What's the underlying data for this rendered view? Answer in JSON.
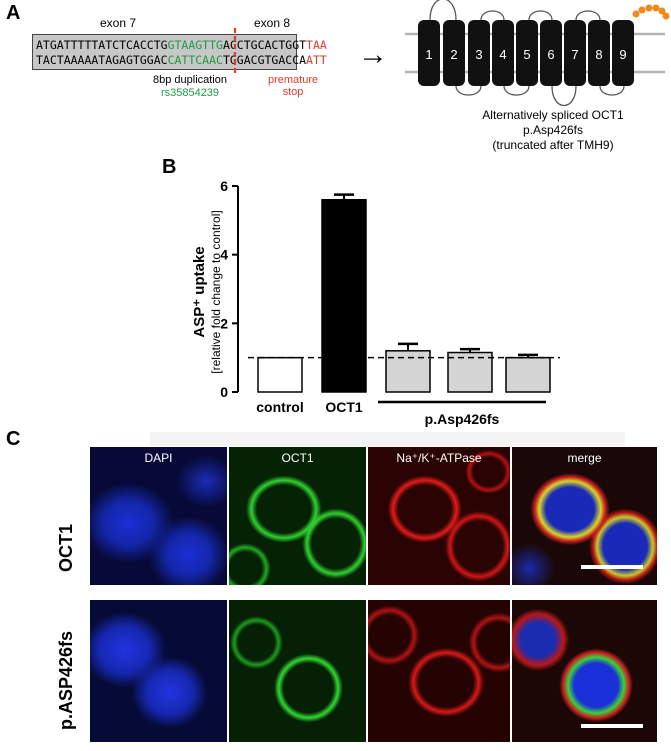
{
  "panel_a": {
    "label": "A",
    "exon7": "exon 7",
    "exon8": "exon 8",
    "seq_top": {
      "plain": "ATGATTTTTATCTCACCTG",
      "green": "GTAAGTTG",
      "black2": "ACCTGCACTGGT",
      "red": "TAA"
    },
    "seq_bottom": {
      "plain": "TACTAAAAATAGAGTGGAC",
      "green": "CATTCAAC",
      "black2": "TGGACGTGACCA",
      "red": "ATT"
    },
    "duplication": "8bp duplication",
    "rsid": "rs35854239",
    "stop": "premature stop",
    "arrow": "→",
    "tmh": [
      "1",
      "2",
      "3",
      "4",
      "5",
      "6",
      "7",
      "8",
      "9"
    ],
    "caption": [
      "Alternatively spliced OCT1",
      "p.Asp426fs",
      "(truncated after TMH9)"
    ],
    "colors": {
      "green": "#1f9a4a",
      "red": "#e23b2e",
      "membrane": "#b3b3b3",
      "helix": "#111111",
      "tail": "#f08a1c"
    }
  },
  "panel_b": {
    "label": "B",
    "chart_data": {
      "type": "bar",
      "ylabel": "ASP⁺ uptake",
      "ylabel_sub": "[relative fold change to control]",
      "ylim": [
        0,
        6
      ],
      "yticks": [
        "0",
        "2",
        "4",
        "6"
      ],
      "categories": [
        "control",
        "OCT1",
        "",
        "",
        ""
      ],
      "group_label": "p.Asp426fs",
      "values": [
        1.0,
        5.6,
        1.2,
        1.15,
        1.0
      ],
      "errors": [
        0.0,
        0.15,
        0.2,
        0.1,
        0.08
      ],
      "fills": [
        "#ffffff",
        "#000000",
        "#d4d4d4",
        "#d4d4d4",
        "#d4d4d4"
      ],
      "reference_line": 1.0
    }
  },
  "panel_c": {
    "label": "C",
    "channels": [
      "DAPI",
      "OCT1",
      "Na⁺/K⁺-ATPase",
      "merge"
    ],
    "rows": [
      "OCT1",
      "p.ASP426fs"
    ]
  }
}
